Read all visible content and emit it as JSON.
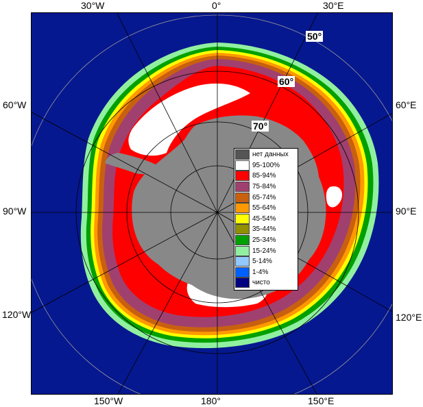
{
  "colors": {
    "ocean": "#06188f",
    "land": "#888888",
    "ice_95": "#ffffff",
    "ice_85": "#ff0000",
    "ice_75": "#a0406f",
    "ice_65": "#c86010",
    "ice_55": "#ff9900",
    "ice_45": "#ffff00",
    "ice_35": "#909000",
    "ice_25": "#00a000",
    "ice_15": "#90f0a0",
    "ice_5": "#90c8ff",
    "ice_1": "#0060ff",
    "clear": "#000080",
    "no_data": "#555555"
  },
  "map": {
    "projection": "south-polar-stereographic",
    "center_label": "South Pole"
  },
  "longitude_labels": {
    "top": [
      "30°W",
      "0°",
      "30°E"
    ],
    "left": [
      "60°W",
      "90°W",
      "120°W"
    ],
    "right": [
      "60°E",
      "90°E",
      "120°E"
    ],
    "bottom": [
      "150°W",
      "180°",
      "150°E"
    ]
  },
  "latitude_labels": [
    "50°",
    "60°",
    "70°"
  ],
  "legend": {
    "items": [
      {
        "label": "нет данных",
        "color": "#555555"
      },
      {
        "label": "95-100%",
        "color": "#ffffff"
      },
      {
        "label": "85-94%",
        "color": "#ff0000"
      },
      {
        "label": "75-84%",
        "color": "#a0406f"
      },
      {
        "label": "65-74%",
        "color": "#c86010"
      },
      {
        "label": "55-64%",
        "color": "#ff9900"
      },
      {
        "label": "45-54%",
        "color": "#ffff00"
      },
      {
        "label": "35-44%",
        "color": "#909000"
      },
      {
        "label": "25-34%",
        "color": "#00a000"
      },
      {
        "label": "15-24%",
        "color": "#90f0a0"
      },
      {
        "label": "5-14%",
        "color": "#90c8ff"
      },
      {
        "label": "1-4%",
        "color": "#0060ff"
      },
      {
        "label": "чисто",
        "color": "#000080"
      }
    ]
  }
}
